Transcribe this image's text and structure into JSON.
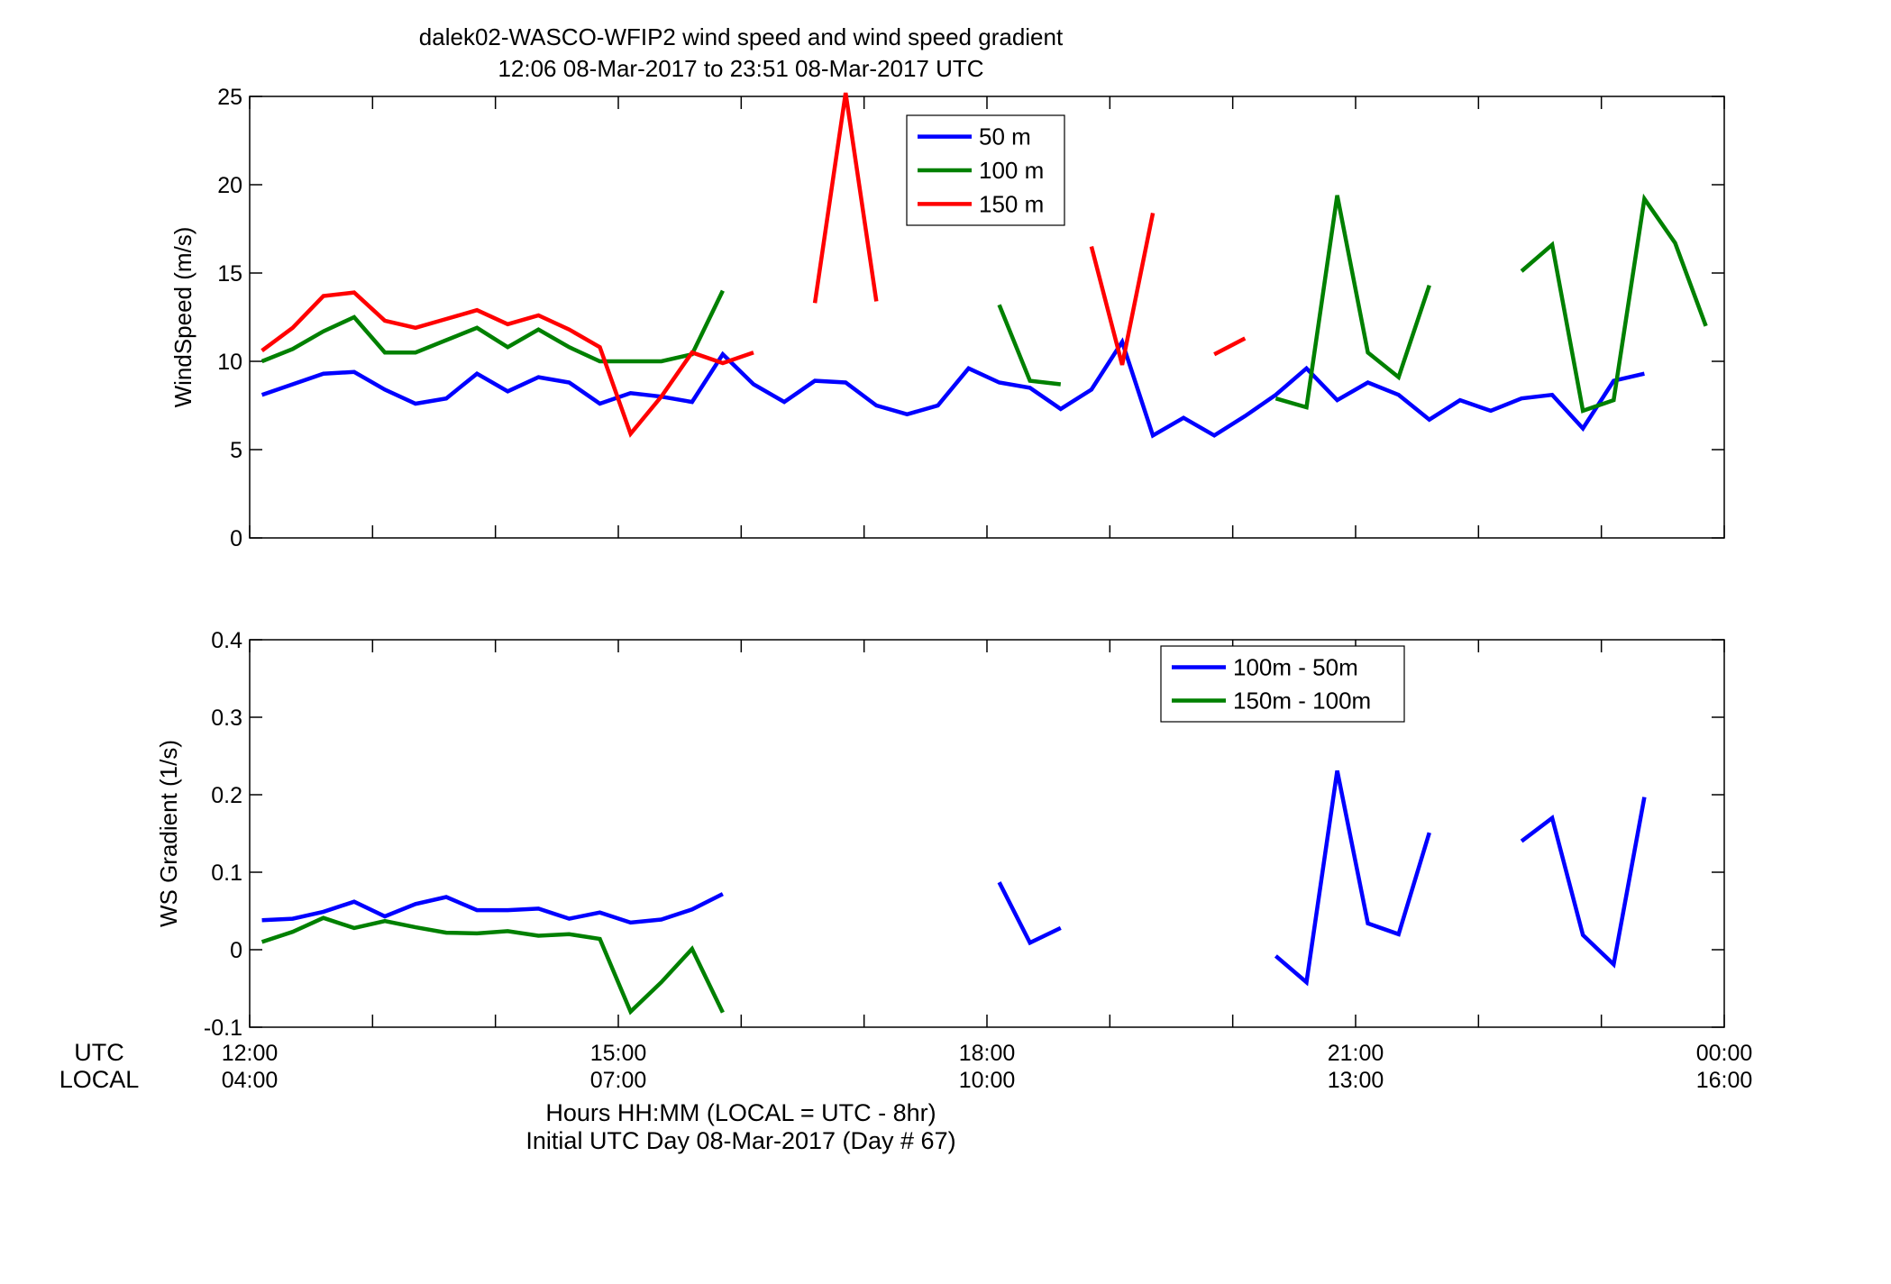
{
  "title_lines": [
    "dalek02-WASCO-WFIP2  wind speed and wind speed gradient",
    "12:06 08-Mar-2017 to 23:51 08-Mar-2017  UTC"
  ],
  "bottom_labels": {
    "utc": "UTC",
    "local": "LOCAL",
    "xlabel_line1": "Hours HH:MM  (LOCAL = UTC - 8hr)",
    "xlabel_line2": "Initial UTC Day 08-Mar-2017 (Day # 67)"
  },
  "x_ticks": [
    {
      "hour": 12,
      "utc": "12:00",
      "local": "04:00"
    },
    {
      "hour": 15,
      "utc": "15:00",
      "local": "07:00"
    },
    {
      "hour": 18,
      "utc": "18:00",
      "local": "10:00"
    },
    {
      "hour": 21,
      "utc": "21:00",
      "local": "13:00"
    },
    {
      "hour": 24,
      "utc": "00:00",
      "local": "16:00"
    }
  ],
  "colors": {
    "blue": "#0000ff",
    "green": "#008000",
    "red": "#ff0000"
  },
  "chart_data": [
    {
      "type": "line",
      "ylabel": "WindSpeed (m/s)",
      "xlim": [
        12,
        24
      ],
      "ylim": [
        0,
        25
      ],
      "yticks": [
        0,
        5,
        10,
        15,
        20,
        25
      ],
      "legend_position": "top-center",
      "x_unit": "hour UTC",
      "series": [
        {
          "name": "50 m",
          "color": "#0000ff",
          "segments": [
            [
              [
                12.1,
                8.1
              ],
              [
                12.35,
                8.7
              ],
              [
                12.6,
                9.3
              ],
              [
                12.85,
                9.4
              ],
              [
                13.1,
                8.4
              ],
              [
                13.35,
                7.6
              ],
              [
                13.6,
                7.9
              ],
              [
                13.85,
                9.3
              ],
              [
                14.1,
                8.3
              ],
              [
                14.35,
                9.1
              ],
              [
                14.6,
                8.8
              ],
              [
                14.85,
                7.6
              ],
              [
                15.1,
                8.2
              ],
              [
                15.35,
                8.0
              ],
              [
                15.6,
                7.7
              ],
              [
                15.85,
                10.4
              ],
              [
                16.1,
                8.7
              ],
              [
                16.35,
                7.7
              ],
              [
                16.6,
                8.9
              ],
              [
                16.85,
                8.8
              ],
              [
                17.1,
                7.5
              ],
              [
                17.35,
                7.0
              ],
              [
                17.6,
                7.5
              ],
              [
                17.85,
                9.6
              ],
              [
                18.1,
                8.8
              ],
              [
                18.35,
                8.5
              ],
              [
                18.6,
                7.3
              ],
              [
                18.85,
                8.4
              ],
              [
                19.1,
                11.1
              ],
              [
                19.35,
                5.8
              ],
              [
                19.6,
                6.8
              ],
              [
                19.85,
                5.8
              ],
              [
                20.1,
                6.9
              ],
              [
                20.35,
                8.1
              ],
              [
                20.6,
                9.6
              ],
              [
                20.85,
                7.8
              ],
              [
                21.1,
                8.8
              ],
              [
                21.35,
                8.1
              ],
              [
                21.6,
                6.7
              ],
              [
                21.85,
                7.8
              ],
              [
                22.1,
                7.2
              ],
              [
                22.35,
                7.9
              ],
              [
                22.6,
                8.1
              ],
              [
                22.85,
                6.2
              ],
              [
                23.1,
                8.9
              ],
              [
                23.35,
                9.3
              ]
            ]
          ]
        },
        {
          "name": "100 m",
          "color": "#008000",
          "segments": [
            [
              [
                12.1,
                10.0
              ],
              [
                12.35,
                10.7
              ],
              [
                12.6,
                11.7
              ],
              [
                12.85,
                12.5
              ],
              [
                13.1,
                10.5
              ],
              [
                13.35,
                10.5
              ],
              [
                13.6,
                11.2
              ],
              [
                13.85,
                11.9
              ],
              [
                14.1,
                10.8
              ],
              [
                14.35,
                11.8
              ],
              [
                14.6,
                10.8
              ],
              [
                14.85,
                10.0
              ],
              [
                15.1,
                10.0
              ],
              [
                15.35,
                10.0
              ],
              [
                15.6,
                10.4
              ],
              [
                15.85,
                14.0
              ]
            ],
            [
              [
                18.1,
                13.2
              ],
              [
                18.35,
                8.9
              ],
              [
                18.6,
                8.7
              ]
            ],
            [
              [
                20.35,
                7.9
              ],
              [
                20.6,
                7.4
              ],
              [
                20.85,
                19.4
              ],
              [
                21.1,
                10.5
              ],
              [
                21.35,
                9.1
              ],
              [
                21.6,
                14.3
              ]
            ],
            [
              [
                22.35,
                15.1
              ],
              [
                22.6,
                16.6
              ],
              [
                22.85,
                7.2
              ],
              [
                23.1,
                7.8
              ],
              [
                23.35,
                19.2
              ],
              [
                23.6,
                16.7
              ],
              [
                23.85,
                12.0
              ]
            ]
          ]
        },
        {
          "name": "150 m",
          "color": "#ff0000",
          "segments": [
            [
              [
                12.1,
                10.6
              ],
              [
                12.35,
                11.9
              ],
              [
                12.6,
                13.7
              ],
              [
                12.85,
                13.9
              ],
              [
                13.1,
                12.3
              ],
              [
                13.35,
                11.9
              ],
              [
                13.6,
                12.4
              ],
              [
                13.85,
                12.9
              ],
              [
                14.1,
                12.1
              ],
              [
                14.35,
                12.6
              ],
              [
                14.6,
                11.8
              ],
              [
                14.85,
                10.8
              ],
              [
                15.1,
                5.9
              ],
              [
                15.35,
                8.0
              ],
              [
                15.6,
                10.5
              ],
              [
                15.85,
                9.9
              ],
              [
                16.1,
                10.5
              ]
            ],
            [
              [
                16.6,
                13.3
              ],
              [
                16.85,
                25.2
              ],
              [
                17.1,
                13.4
              ]
            ],
            [
              [
                18.85,
                16.5
              ],
              [
                19.1,
                9.8
              ],
              [
                19.35,
                18.4
              ]
            ],
            [
              [
                19.85,
                10.4
              ],
              [
                20.1,
                11.3
              ]
            ]
          ]
        }
      ]
    },
    {
      "type": "line",
      "ylabel": "WS Gradient (1/s)",
      "xlim": [
        12,
        24
      ],
      "ylim": [
        -0.1,
        0.4
      ],
      "yticks": [
        -0.1,
        0,
        0.1,
        0.2,
        0.3,
        0.4
      ],
      "yticklabels": [
        "-0.1",
        "0",
        "0.1",
        "0.2",
        "0.3",
        "0.4"
      ],
      "legend_position": "top-right",
      "x_unit": "hour UTC",
      "series": [
        {
          "name": "100m - 50m",
          "color": "#0000ff",
          "segments": [
            [
              [
                12.1,
                0.038
              ],
              [
                12.35,
                0.04
              ],
              [
                12.6,
                0.049
              ],
              [
                12.85,
                0.062
              ],
              [
                13.1,
                0.043
              ],
              [
                13.35,
                0.059
              ],
              [
                13.6,
                0.068
              ],
              [
                13.85,
                0.051
              ],
              [
                14.1,
                0.051
              ],
              [
                14.35,
                0.053
              ],
              [
                14.6,
                0.04
              ],
              [
                14.85,
                0.048
              ],
              [
                15.1,
                0.035
              ],
              [
                15.35,
                0.039
              ],
              [
                15.6,
                0.052
              ],
              [
                15.85,
                0.072
              ]
            ],
            [
              [
                18.1,
                0.087
              ],
              [
                18.35,
                0.009
              ],
              [
                18.6,
                0.028
              ]
            ],
            [
              [
                20.35,
                -0.008
              ],
              [
                20.6,
                -0.042
              ],
              [
                20.85,
                0.231
              ],
              [
                21.1,
                0.034
              ],
              [
                21.35,
                0.02
              ],
              [
                21.6,
                0.151
              ]
            ],
            [
              [
                22.35,
                0.14
              ],
              [
                22.6,
                0.17
              ],
              [
                22.85,
                0.019
              ],
              [
                23.1,
                -0.019
              ],
              [
                23.35,
                0.197
              ]
            ]
          ]
        },
        {
          "name": "150m - 100m",
          "color": "#008000",
          "segments": [
            [
              [
                12.1,
                0.01
              ],
              [
                12.35,
                0.023
              ],
              [
                12.6,
                0.041
              ],
              [
                12.85,
                0.028
              ],
              [
                13.1,
                0.037
              ],
              [
                13.35,
                0.029
              ],
              [
                13.6,
                0.022
              ],
              [
                13.85,
                0.021
              ],
              [
                14.1,
                0.024
              ],
              [
                14.35,
                0.018
              ],
              [
                14.6,
                0.02
              ],
              [
                14.85,
                0.014
              ],
              [
                15.1,
                -0.08
              ],
              [
                15.35,
                -0.042
              ],
              [
                15.6,
                0.001
              ],
              [
                15.85,
                -0.081
              ]
            ]
          ]
        }
      ]
    }
  ]
}
